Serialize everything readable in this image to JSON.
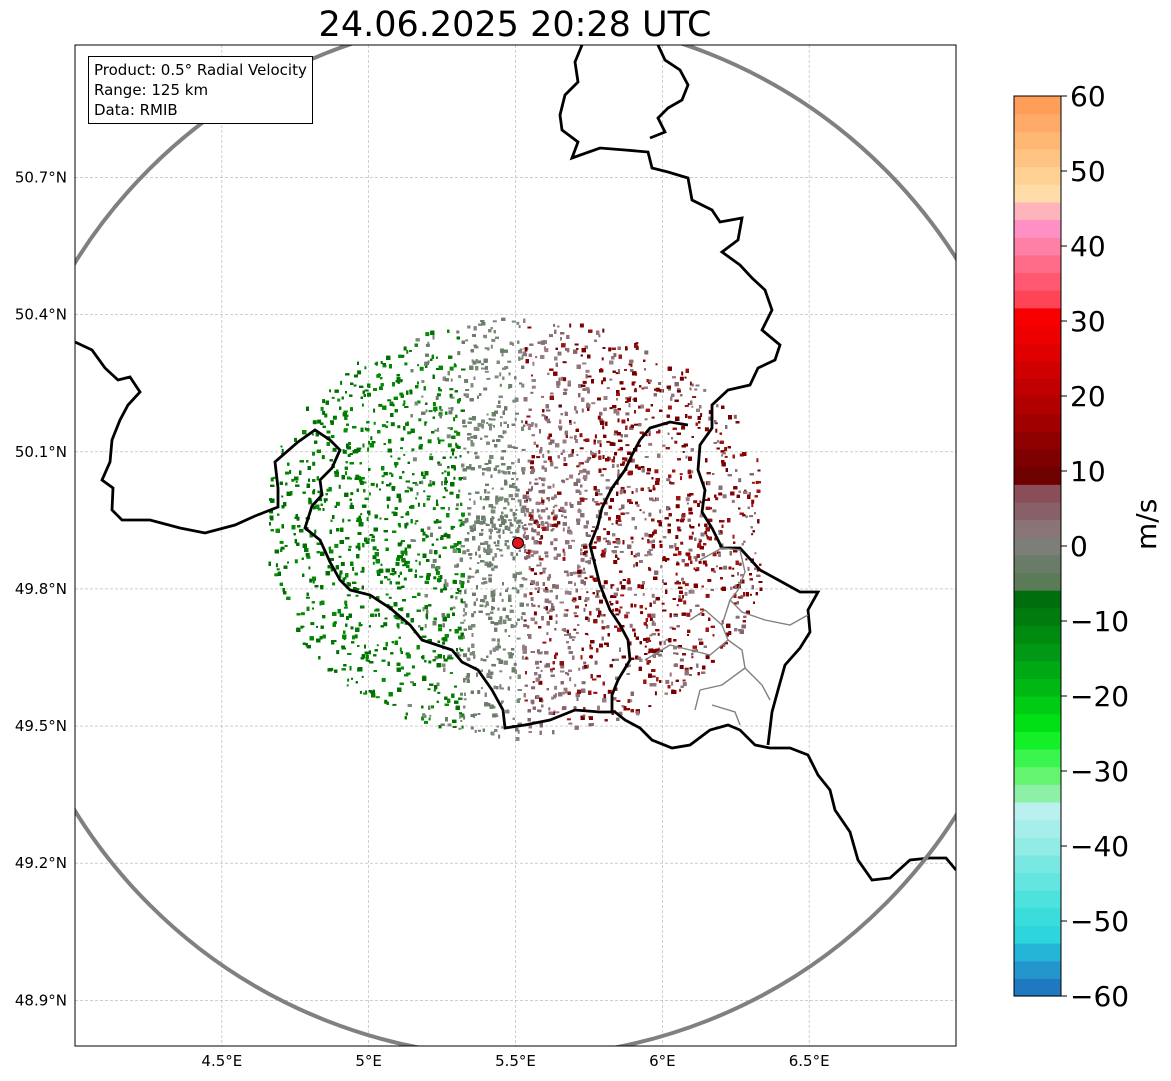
{
  "title": "24.06.2025 20:28 UTC",
  "info_box": {
    "product": "Product: 0.5° Radial Velocity",
    "range": "Range: 125 km",
    "data": "Data: RMIB"
  },
  "map": {
    "radar_site": {
      "lon": 5.505,
      "lat": 49.914
    },
    "extent": {
      "lon_min": 4.0,
      "lon_max": 7.0,
      "lat_min": 48.8,
      "lat_max": 50.99
    },
    "range_ring_km": 125,
    "lat_ticks": [
      {
        "value": 50.7,
        "label": "50.7°N"
      },
      {
        "value": 50.4,
        "label": "50.4°N"
      },
      {
        "value": 50.1,
        "label": "50.1°N"
      },
      {
        "value": 49.8,
        "label": "49.8°N"
      },
      {
        "value": 49.5,
        "label": "49.5°N"
      },
      {
        "value": 49.2,
        "label": "49.2°N"
      },
      {
        "value": 48.9,
        "label": "48.9°N"
      }
    ],
    "lon_ticks": [
      {
        "value": 4.5,
        "label": "4.5°E"
      },
      {
        "value": 5.0,
        "label": "5°E"
      },
      {
        "value": 5.5,
        "label": "5.5°E"
      },
      {
        "value": 6.0,
        "label": "6°E"
      },
      {
        "value": 6.5,
        "label": "6.5°E"
      }
    ],
    "grid": true,
    "colors": {
      "range_ring": "#808080",
      "border": "#000000",
      "admin_border": "#808080",
      "radar_marker": "#e0141e"
    }
  },
  "colorbar": {
    "unit": "m/s",
    "vmin": -60,
    "vmax": 60,
    "tick_values": [
      60,
      50,
      40,
      30,
      20,
      10,
      0,
      -10,
      -20,
      -30,
      -40,
      -50,
      -60
    ],
    "tick_labels": [
      "60",
      "50",
      "40",
      "30",
      "20",
      "10",
      "0",
      "−10",
      "−20",
      "−30",
      "−40",
      "−50",
      "−60"
    ],
    "colors_bottom_to_top": [
      "#1f78c0",
      "#2596cc",
      "#23b4d6",
      "#2cd6dc",
      "#3bdcdc",
      "#4ee2de",
      "#63e6e0",
      "#7ae8e2",
      "#92ece6",
      "#a6eeea",
      "#baf0ee",
      "#8cf0a6",
      "#64f46e",
      "#3cf44e",
      "#14f028",
      "#00e014",
      "#00cc14",
      "#00b814",
      "#00a814",
      "#009814",
      "#008a10",
      "#007c0e",
      "#006e0c",
      "#5a7a58",
      "#6a7c68",
      "#7e7e78",
      "#8a7478",
      "#8a6068",
      "#8a4e58",
      "#6e0000",
      "#7e0000",
      "#8e0000",
      "#a00000",
      "#b00000",
      "#c00000",
      "#d00000",
      "#e00000",
      "#ee0000",
      "#f80000",
      "#ff4458",
      "#ff5870",
      "#ff6c8a",
      "#ff80a6",
      "#ff90c6",
      "#ffb4bc",
      "#ffdca8",
      "#ffd294",
      "#ffc484",
      "#ffb874",
      "#ffaa68",
      "#ff9e58"
    ]
  }
}
